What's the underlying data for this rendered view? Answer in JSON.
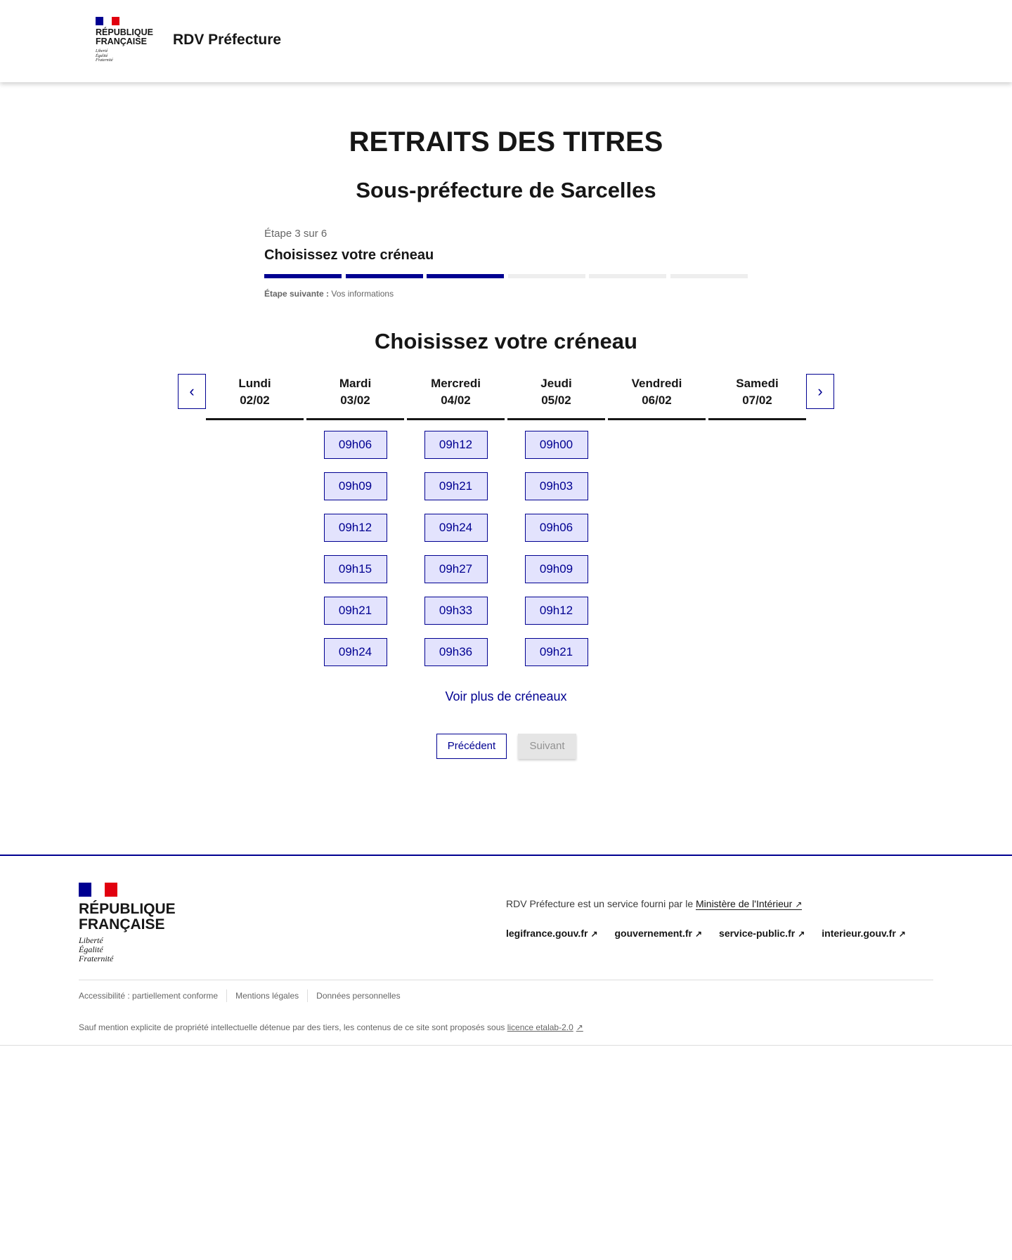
{
  "header": {
    "logo": {
      "line1": "RÉPUBLIQUE",
      "line2": "FRANÇAISE",
      "motto": [
        "Liberté",
        "Égalité",
        "Fraternité"
      ]
    },
    "service_name": "RDV Préfecture"
  },
  "page": {
    "title": "RETRAITS DES TITRES",
    "subtitle": "Sous-préfecture de Sarcelles"
  },
  "stepper": {
    "step_label": "Étape 3 sur 6",
    "current_step": 3,
    "total_steps": 6,
    "title": "Choisissez votre créneau",
    "next_label": "Étape suivante :",
    "next_value": "Vos informations",
    "active_color": "#000091"
  },
  "calendar": {
    "heading": "Choisissez votre créneau",
    "days": [
      {
        "day": "Lundi",
        "date": "02/02",
        "slots": []
      },
      {
        "day": "Mardi",
        "date": "03/02",
        "slots": [
          "09h06",
          "09h09",
          "09h12",
          "09h15",
          "09h21",
          "09h24"
        ]
      },
      {
        "day": "Mercredi",
        "date": "04/02",
        "slots": [
          "09h12",
          "09h21",
          "09h24",
          "09h27",
          "09h33",
          "09h36"
        ]
      },
      {
        "day": "Jeudi",
        "date": "05/02",
        "slots": [
          "09h00",
          "09h03",
          "09h06",
          "09h09",
          "09h12",
          "09h21"
        ]
      },
      {
        "day": "Vendredi",
        "date": "06/02",
        "slots": []
      },
      {
        "day": "Samedi",
        "date": "07/02",
        "slots": []
      }
    ],
    "prev_icon": "chevron-left-icon",
    "next_icon": "chevron-right-icon",
    "more_link": "Voir plus de créneaux"
  },
  "actions": {
    "previous": "Précédent",
    "next": "Suivant"
  },
  "footer": {
    "logo": {
      "line1": "RÉPUBLIQUE",
      "line2": "FRANÇAISE",
      "motto": [
        "Liberté",
        "Égalité",
        "Fraternité"
      ]
    },
    "description": "RDV Préfecture est un service fourni par le ",
    "ministry_link": "Ministère de l'Intérieur",
    "links": [
      "legifrance.gouv.fr",
      "gouvernement.fr",
      "service-public.fr",
      "interieur.gouv.fr"
    ],
    "bottom_links": [
      "Accessibilité : partiellement conforme",
      "Mentions légales",
      "Données personnelles"
    ],
    "license_text": "Sauf mention explicite de propriété intellectuelle détenue par des tiers, les contenus de ce site sont proposés sous ",
    "license_link": "licence etalab-2.0"
  }
}
